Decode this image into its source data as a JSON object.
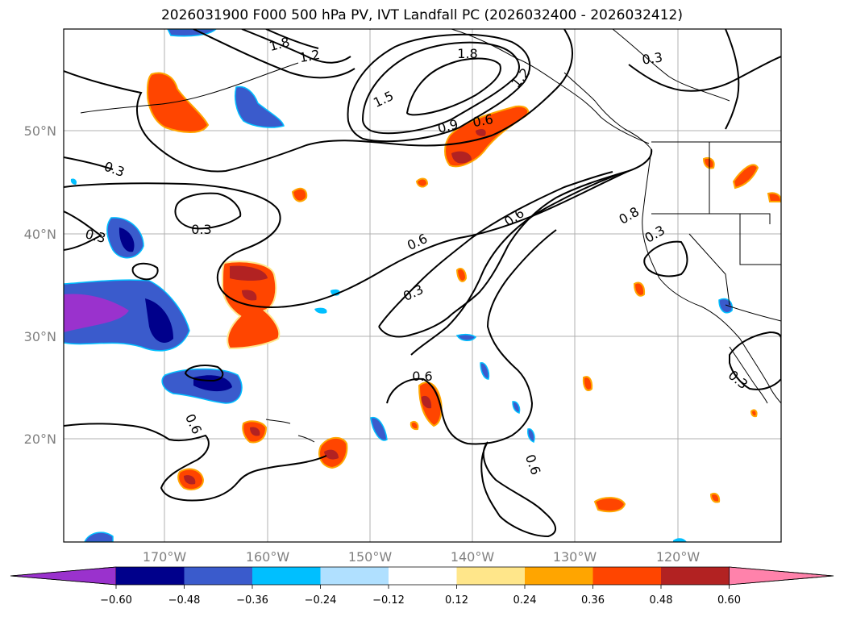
{
  "title": "2026031900 F000 500 hPa PV, IVT Landfall PC (2026032400 - 2026032412)",
  "map": {
    "lat_labels": [
      "50°N",
      "40°N",
      "30°N",
      "20°N"
    ],
    "lon_labels": [
      "170°W",
      "160°W",
      "150°W",
      "140°W",
      "130°W",
      "120°W"
    ]
  },
  "pv_contour_labels": [
    "1.8",
    "1.2",
    "1.8",
    "1.5",
    "1.2",
    "0.9",
    "0.6",
    "0.3",
    "0.3",
    "0.3",
    "0.6",
    "0.3",
    "0.6",
    "0.8",
    "0.3",
    "0.6",
    "0.6",
    "0.3",
    "0.6"
  ],
  "colorbar": {
    "ticks": [
      "−0.60",
      "−0.48",
      "−0.36",
      "−0.24",
      "−0.12",
      "0.12",
      "0.24",
      "0.36",
      "0.48",
      "0.60"
    ],
    "colors": {
      "under": "#9a32cd",
      "neg60": "#00008b",
      "neg48": "#3a5bcc",
      "neg36": "#00bfff",
      "neg24": "#b0e0ff",
      "neutral": "#ffffff",
      "pos12": "#ffe68a",
      "pos24": "#ffa500",
      "pos36": "#ff4500",
      "pos48": "#b22222",
      "over": "#ff82ab"
    }
  }
}
